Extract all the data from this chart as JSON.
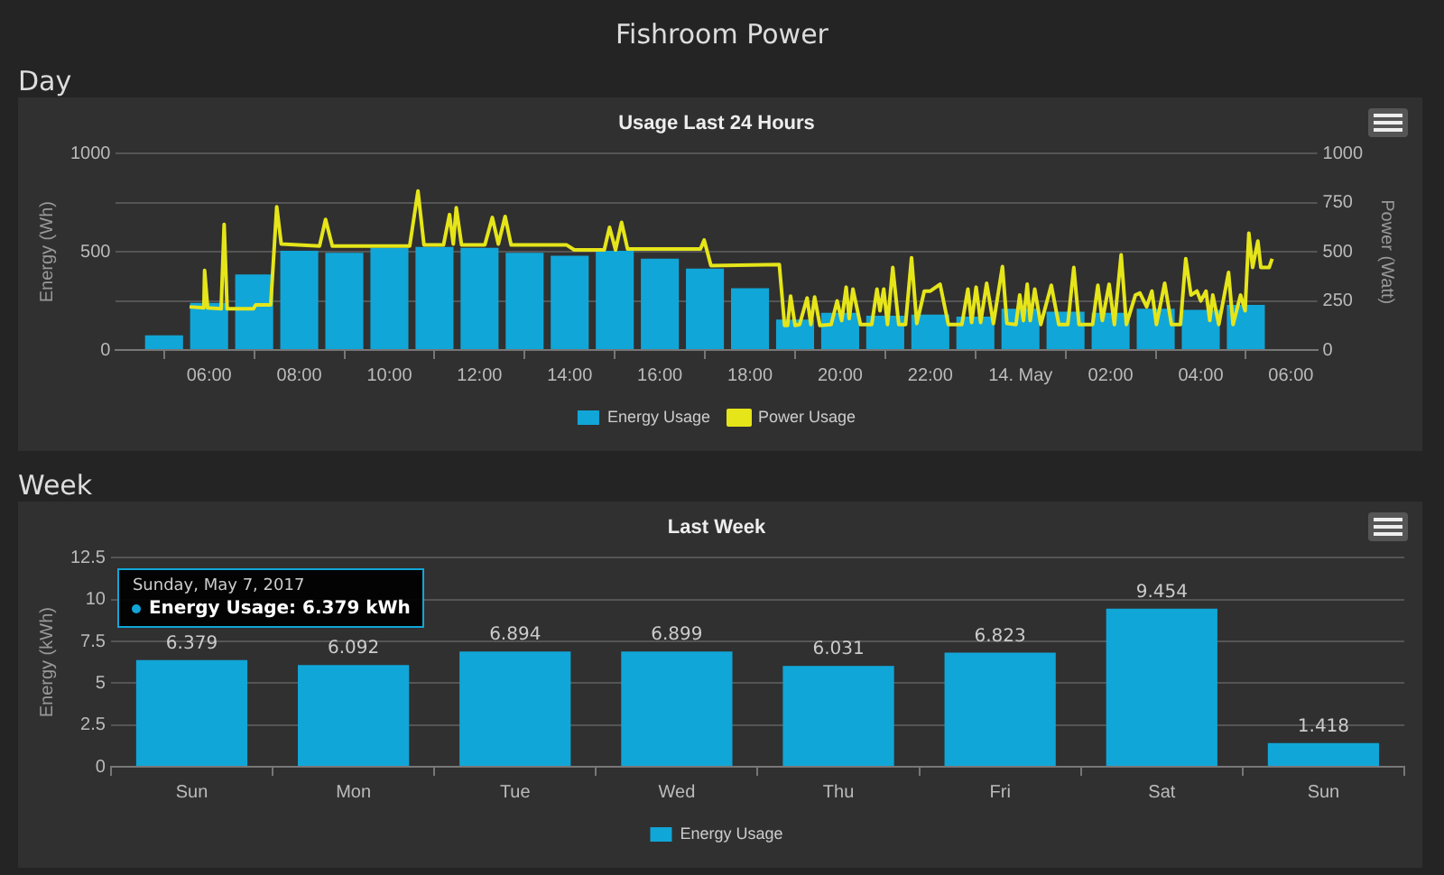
{
  "chart_data": [
    {
      "type": "bar",
      "title": "Usage Last 24 Hours",
      "ylabel": "Energy (Wh)",
      "y2label": "Power (Watt)",
      "annotations": [
        "Fishroom Power",
        "Day"
      ],
      "x": [
        "2017-05-13T05:00",
        "2017-05-13T06:00",
        "2017-05-13T07:00",
        "2017-05-13T08:00",
        "2017-05-13T09:00",
        "2017-05-13T10:00",
        "2017-05-13T11:00",
        "2017-05-13T12:00",
        "2017-05-13T13:00",
        "2017-05-13T14:00",
        "2017-05-13T15:00",
        "2017-05-13T16:00",
        "2017-05-13T17:00",
        "2017-05-13T18:00",
        "2017-05-13T19:00",
        "2017-05-13T20:00",
        "2017-05-13T21:00",
        "2017-05-13T22:00",
        "2017-05-13T23:00",
        "2017-05-14T00:00",
        "2017-05-14T01:00",
        "2017-05-14T02:00",
        "2017-05-14T03:00",
        "2017-05-14T04:00",
        "2017-05-14T05:00"
      ],
      "xlim": [
        "2017-05-13T03:56",
        "2017-05-14T06:35"
      ],
      "xticks": [
        {
          "value": "2017-05-13T06:00",
          "label": "06:00"
        },
        {
          "value": "2017-05-13T08:00",
          "label": "08:00"
        },
        {
          "value": "2017-05-13T10:00",
          "label": "10:00"
        },
        {
          "value": "2017-05-13T12:00",
          "label": "12:00"
        },
        {
          "value": "2017-05-13T14:00",
          "label": "14:00"
        },
        {
          "value": "2017-05-13T16:00",
          "label": "16:00"
        },
        {
          "value": "2017-05-13T18:00",
          "label": "18:00"
        },
        {
          "value": "2017-05-13T20:00",
          "label": "20:00"
        },
        {
          "value": "2017-05-13T22:00",
          "label": "22:00"
        },
        {
          "value": "2017-05-14T00:00",
          "label": "14. May"
        },
        {
          "value": "2017-05-14T02:00",
          "label": "02:00"
        },
        {
          "value": "2017-05-14T04:00",
          "label": "04:00"
        },
        {
          "value": "2017-05-14T06:00",
          "label": "06:00"
        }
      ],
      "ylim": [
        0,
        1000
      ],
      "yticks": [
        0,
        {
          "value": 250,
          "label": null
        },
        500,
        {
          "value": 750,
          "label": null
        },
        1000
      ],
      "y2lim": [
        0,
        1000
      ],
      "y2ticks": [
        0,
        250,
        500,
        750,
        1000
      ],
      "grid": "y",
      "legend": "bottom",
      "series": [
        {
          "name": "Energy Usage",
          "color": "#11a6d8",
          "values": [
            75,
            240,
            385,
            505,
            495,
            520,
            525,
            520,
            495,
            480,
            505,
            465,
            415,
            315,
            155,
            190,
            175,
            180,
            170,
            210,
            195,
            190,
            210,
            205,
            230
          ]
        },
        {
          "name": "Power Usage",
          "type": "line",
          "axis": "y2",
          "color": "#e5e51a",
          "x": [
            "2017-05-13T05:34",
            "2017-05-13T05:53",
            "2017-05-13T05:54",
            "2017-05-13T05:58",
            "2017-05-13T06:16",
            "2017-05-13T06:20",
            "2017-05-13T06:24",
            "2017-05-13T06:59",
            "2017-05-13T07:02",
            "2017-05-13T07:22",
            "2017-05-13T07:30",
            "2017-05-13T07:36",
            "2017-05-13T08:27",
            "2017-05-13T08:35",
            "2017-05-13T08:44",
            "2017-05-13T10:27",
            "2017-05-13T10:38",
            "2017-05-13T10:46",
            "2017-05-13T11:12",
            "2017-05-13T11:20",
            "2017-05-13T11:25",
            "2017-05-13T11:29",
            "2017-05-13T11:36",
            "2017-05-13T12:07",
            "2017-05-13T12:17",
            "2017-05-13T12:25",
            "2017-05-13T12:34",
            "2017-05-13T12:42",
            "2017-05-13T13:56",
            "2017-05-13T14:06",
            "2017-05-13T14:46",
            "2017-05-13T14:53",
            "2017-05-13T15:01",
            "2017-05-13T15:09",
            "2017-05-13T15:17",
            "2017-05-13T16:54",
            "2017-05-13T16:59",
            "2017-05-13T17:08",
            "2017-05-13T18:39",
            "2017-05-13T18:46",
            "2017-05-13T18:50",
            "2017-05-13T18:54",
            "2017-05-13T19:00",
            "2017-05-13T19:06",
            "2017-05-13T19:16",
            "2017-05-13T19:21",
            "2017-05-13T19:26",
            "2017-05-13T19:33",
            "2017-05-13T19:48",
            "2017-05-13T19:56",
            "2017-05-13T20:02",
            "2017-05-13T20:08",
            "2017-05-13T20:12",
            "2017-05-13T20:17",
            "2017-05-13T20:27",
            "2017-05-13T20:42",
            "2017-05-13T20:49",
            "2017-05-13T20:53",
            "2017-05-13T20:58",
            "2017-05-13T21:03",
            "2017-05-13T21:10",
            "2017-05-13T21:18",
            "2017-05-13T21:27",
            "2017-05-13T21:35",
            "2017-05-13T21:42",
            "2017-05-13T21:52",
            "2017-05-13T22:00",
            "2017-05-13T22:13",
            "2017-05-13T22:24",
            "2017-05-13T22:42",
            "2017-05-13T22:50",
            "2017-05-13T22:55",
            "2017-05-13T23:01",
            "2017-05-13T23:07",
            "2017-05-13T23:15",
            "2017-05-13T23:24",
            "2017-05-13T23:36",
            "2017-05-13T23:42",
            "2017-05-13T23:54",
            "2017-05-13T23:59",
            "2017-05-14T00:04",
            "2017-05-14T00:09",
            "2017-05-14T00:13",
            "2017-05-14T00:19",
            "2017-05-14T00:27",
            "2017-05-14T00:41",
            "2017-05-14T00:51",
            "2017-05-14T01:03",
            "2017-05-14T01:11",
            "2017-05-14T01:18",
            "2017-05-14T01:36",
            "2017-05-14T01:43",
            "2017-05-14T01:49",
            "2017-05-14T01:58",
            "2017-05-14T02:05",
            "2017-05-14T02:14",
            "2017-05-14T02:21",
            "2017-05-14T02:33",
            "2017-05-14T02:39",
            "2017-05-14T02:48",
            "2017-05-14T02:55",
            "2017-05-14T03:01",
            "2017-05-14T03:12",
            "2017-05-14T03:21",
            "2017-05-14T03:33",
            "2017-05-14T03:40",
            "2017-05-14T03:47",
            "2017-05-14T03:55",
            "2017-05-14T04:00",
            "2017-05-14T04:07",
            "2017-05-14T04:12",
            "2017-05-14T04:16",
            "2017-05-14T04:24",
            "2017-05-14T04:37",
            "2017-05-14T04:43",
            "2017-05-14T04:53",
            "2017-05-14T04:59",
            "2017-05-14T05:04",
            "2017-05-14T05:09",
            "2017-05-14T05:16",
            "2017-05-14T05:20",
            "2017-05-14T05:23",
            "2017-05-14T05:31",
            "2017-05-14T05:35"
          ],
          "values": [
            220,
            215,
            405,
            215,
            210,
            640,
            210,
            210,
            230,
            230,
            730,
            540,
            530,
            665,
            530,
            530,
            810,
            535,
            535,
            690,
            540,
            725,
            535,
            535,
            675,
            540,
            680,
            535,
            535,
            510,
            510,
            625,
            510,
            650,
            515,
            515,
            560,
            430,
            435,
            125,
            125,
            275,
            125,
            130,
            265,
            130,
            270,
            125,
            130,
            250,
            150,
            320,
            160,
            310,
            130,
            130,
            310,
            200,
            310,
            130,
            420,
            130,
            130,
            470,
            135,
            300,
            300,
            335,
            130,
            130,
            310,
            140,
            320,
            140,
            340,
            135,
            425,
            135,
            130,
            280,
            150,
            335,
            150,
            310,
            130,
            330,
            130,
            130,
            420,
            130,
            130,
            330,
            150,
            335,
            130,
            485,
            130,
            280,
            290,
            220,
            300,
            130,
            340,
            130,
            130,
            465,
            280,
            300,
            250,
            300,
            150,
            280,
            130,
            395,
            130,
            280,
            200,
            595,
            420,
            555,
            420,
            420,
            420,
            465
          ]
        }
      ]
    },
    {
      "type": "bar",
      "title": "Last Week",
      "ylabel": "Energy (kWh)",
      "annotations": [
        "Week",
        "Sunday, May 7, 2017",
        "Energy Usage: 6.379 kWh"
      ],
      "categories": [
        "Sun",
        "Mon",
        "Tue",
        "Wed",
        "Thu",
        "Fri",
        "Sat",
        "Sun"
      ],
      "ylim": [
        0,
        12.5
      ],
      "yticks": [
        0,
        2.5,
        5,
        7.5,
        10,
        12.5
      ],
      "grid": "y",
      "legend": "bottom",
      "data_labels": true,
      "series": [
        {
          "name": "Energy Usage",
          "color": "#11a6d8",
          "values": [
            6.379,
            6.092,
            6.894,
            6.899,
            6.031,
            6.823,
            9.454,
            1.418
          ]
        }
      ]
    }
  ]
}
